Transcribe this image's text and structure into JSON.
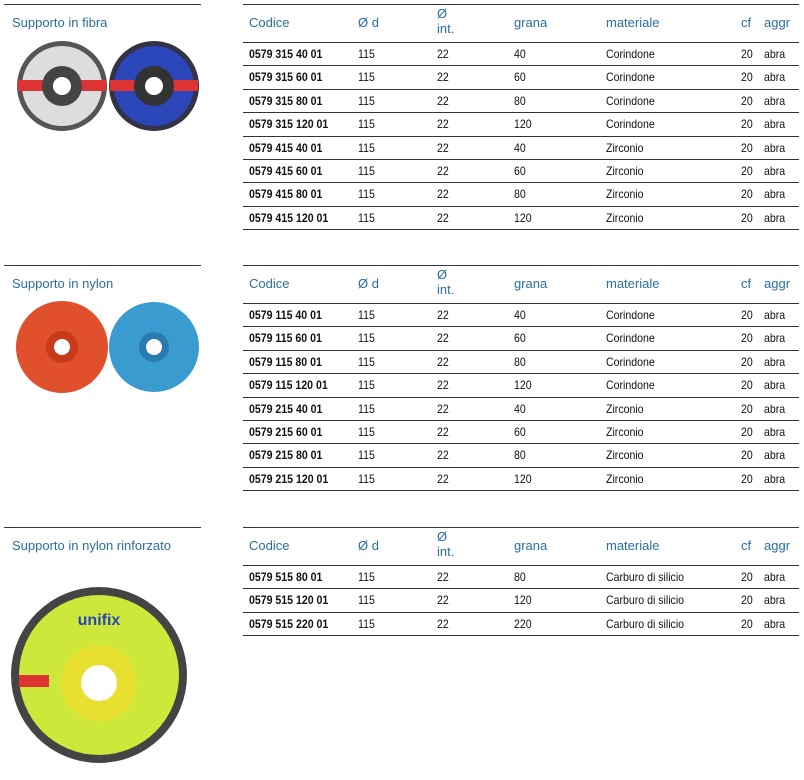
{
  "headers": {
    "codice": "Codice",
    "d": "Ø d",
    "int": "Ø\nint.",
    "grana": "grana",
    "materiale": "materiale",
    "cf": "cf",
    "aggr": "aggr"
  },
  "colors": {
    "accent": "#2a6fa0"
  },
  "sections": [
    {
      "title": "Supporto in fibra",
      "image": "two flap discs grey and blue (unifix)",
      "rows": [
        [
          "0579 315 40 01",
          "115",
          "22",
          "40",
          "Corindone",
          "20",
          "abra"
        ],
        [
          "0579 315 60 01",
          "115",
          "22",
          "60",
          "Corindone",
          "20",
          "abra"
        ],
        [
          "0579 315 80 01",
          "115",
          "22",
          "80",
          "Corindone",
          "20",
          "abra"
        ],
        [
          "0579 315 120 01",
          "115",
          "22",
          "120",
          "Corindone",
          "20",
          "abra"
        ],
        [
          "0579 415 40 01",
          "115",
          "22",
          "40",
          "Zirconio",
          "20",
          "abra"
        ],
        [
          "0579 415 60 01",
          "115",
          "22",
          "60",
          "Zirconio",
          "20",
          "abra"
        ],
        [
          "0579 415 80 01",
          "115",
          "22",
          "80",
          "Zirconio",
          "20",
          "abra"
        ],
        [
          "0579 415 120 01",
          "115",
          "22",
          "120",
          "Zirconio",
          "20",
          "abra"
        ]
      ]
    },
    {
      "title": "Supporto in nylon",
      "image": "two flap discs red and light blue (unifix)",
      "rows": [
        [
          "0579 115 40 01",
          "115",
          "22",
          "40",
          "Corindone",
          "20",
          "abra"
        ],
        [
          "0579 115 60 01",
          "115",
          "22",
          "60",
          "Corindone",
          "20",
          "abra"
        ],
        [
          "0579 115 80 01",
          "115",
          "22",
          "80",
          "Corindone",
          "20",
          "abra"
        ],
        [
          "0579 115 120 01",
          "115",
          "22",
          "120",
          "Corindone",
          "20",
          "abra"
        ],
        [
          "0579 215 40 01",
          "115",
          "22",
          "40",
          "Zirconio",
          "20",
          "abra"
        ],
        [
          "0579 215 60 01",
          "115",
          "22",
          "60",
          "Zirconio",
          "20",
          "abra"
        ],
        [
          "0579 215 80 01",
          "115",
          "22",
          "80",
          "Zirconio",
          "20",
          "abra"
        ],
        [
          "0579 215 120 01",
          "115",
          "22",
          "120",
          "Zirconio",
          "20",
          "abra"
        ]
      ]
    },
    {
      "title": "Supporto in nylon rinforzato",
      "image": "yellow-green flap disc (unifix)",
      "rows": [
        [
          "0579 515 80 01",
          "115",
          "22",
          "80",
          "Carburo di silicio",
          "20",
          "abra"
        ],
        [
          "0579 515 120 01",
          "115",
          "22",
          "120",
          "Carburo di silicio",
          "20",
          "abra"
        ],
        [
          "0579 515 220 01",
          "115",
          "22",
          "220",
          "Carburo di silicio",
          "20",
          "abra"
        ]
      ]
    }
  ]
}
